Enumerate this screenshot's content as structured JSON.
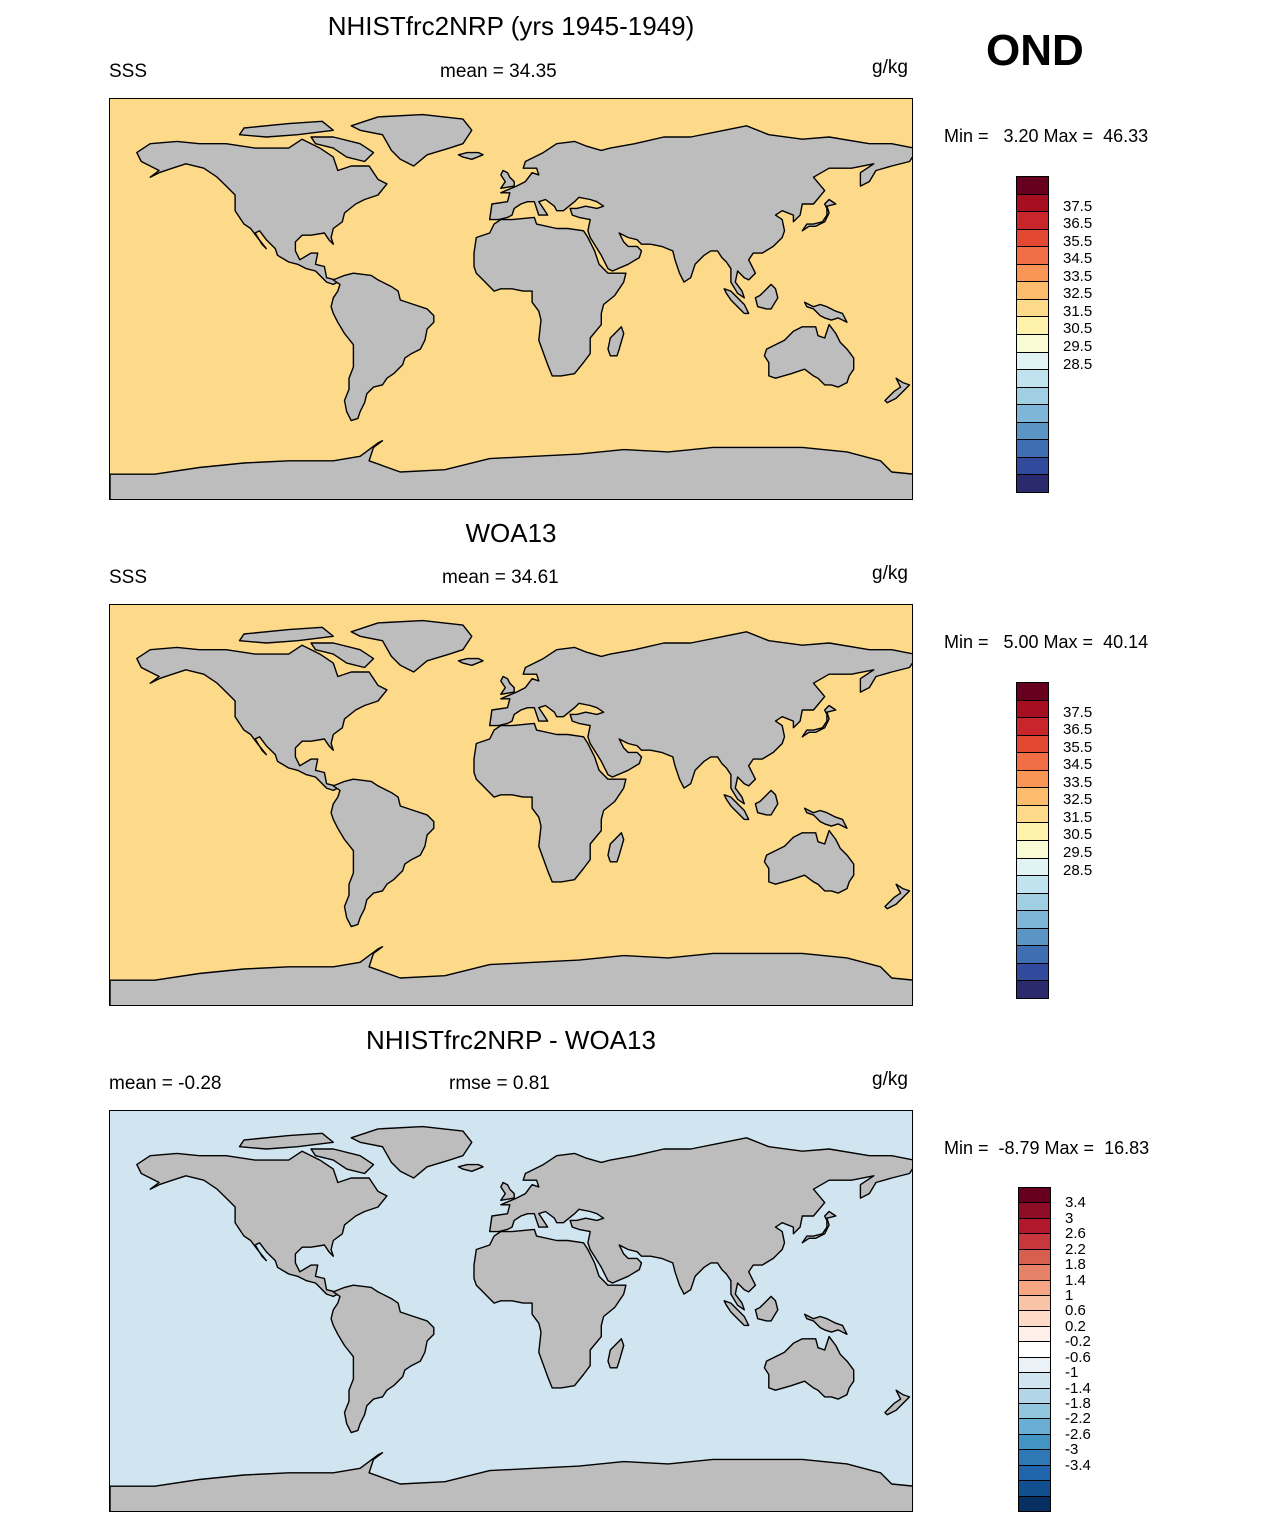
{
  "season": "OND",
  "panels": [
    {
      "title": "NHISTfrc2NRP (yrs 1945-1949)",
      "left_label": "SSS",
      "center_label": "mean =  34.35",
      "units": "g/kg",
      "minmax": "Min =   3.20 Max =  46.33",
      "kind": "field"
    },
    {
      "title": "WOA13",
      "left_label": "SSS",
      "center_label": "mean =  34.61",
      "units": "g/kg",
      "minmax": "Min =   5.00 Max =  40.14",
      "kind": "field"
    },
    {
      "title": "NHISTfrc2NRP - WOA13",
      "left_label": "mean =  -0.28",
      "center_label": "rmse =   0.81",
      "units": "g/kg",
      "minmax": "Min =  -8.79 Max =  16.83",
      "kind": "diff"
    }
  ],
  "colorbars": {
    "field": {
      "labels": [
        "37.5",
        "36.5",
        "35.5",
        "34.5",
        "33.5",
        "32.5",
        "31.5",
        "30.5",
        "29.5",
        "28.5"
      ],
      "colors": [
        "#67001f",
        "#a50f20",
        "#c8262b",
        "#e34932",
        "#f26e44",
        "#f99656",
        "#fdbb6c",
        "#fdd98a",
        "#fef2ad",
        "#f8fbd4",
        "#e2f3f3",
        "#c1e3ef",
        "#a0cfe4",
        "#7eb6d7",
        "#5b95c6",
        "#3f6fb2",
        "#324a9b",
        "#2b2a6d"
      ]
    },
    "diff": {
      "labels": [
        "3.4",
        "3",
        "2.6",
        "2.2",
        "1.8",
        "1.4",
        "1",
        "0.6",
        "0.2",
        "-0.2",
        "-0.6",
        "-1",
        "-1.4",
        "-1.8",
        "-2.2",
        "-2.6",
        "-3",
        "-3.4"
      ],
      "colors": [
        "#67001f",
        "#8e0d26",
        "#b2182b",
        "#c6383c",
        "#d6604d",
        "#e58267",
        "#f4a582",
        "#f9c3a8",
        "#fddbc7",
        "#fef0e8",
        "#ffffff",
        "#eaf2f8",
        "#d1e5f0",
        "#b3d5e8",
        "#92c5de",
        "#6aaed6",
        "#4393c3",
        "#2f78b6",
        "#2166ac",
        "#124f8f",
        "#053061"
      ]
    }
  },
  "map_colors": {
    "land": "#bdbdbd",
    "coast": "#000000",
    "field_pacific": "#fdd98a",
    "field_high": "#f26e44",
    "field_max": "#c8262b",
    "field_arctic": "#a0cfe4",
    "field_fresh": "#324a9b",
    "diff_base": "#d1e5f0",
    "diff_pos": "#f4a582",
    "diff_strong": "#b2182b",
    "diff_neg": "#92c5de",
    "diff_white": "#ffffff"
  }
}
